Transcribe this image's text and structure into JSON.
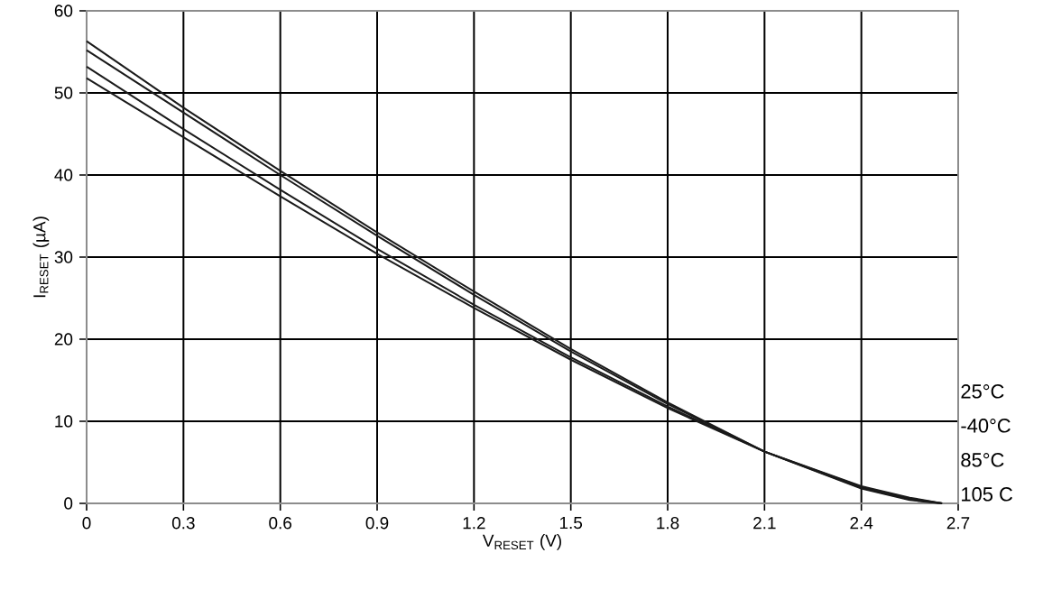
{
  "chart_data": {
    "type": "line",
    "xlabel": "V$_{RESET}$ (V)",
    "ylabel": "I$_{RESET}$ (µA)",
    "x": [
      0,
      0.3,
      0.6,
      0.9,
      1.2,
      1.5,
      1.8,
      2.1,
      2.4,
      2.55,
      2.65
    ],
    "series": [
      {
        "name": "25°C",
        "color": "#1a1a1a",
        "values": [
          56.3,
          48.2,
          40.5,
          33.0,
          25.8,
          18.8,
          12.3,
          6.3,
          1.8,
          0.4,
          0
        ]
      },
      {
        "name": "-40°C",
        "color": "#1a1a1a",
        "values": [
          55.2,
          47.6,
          40.0,
          32.6,
          25.4,
          18.5,
          12.1,
          6.3,
          1.9,
          0.5,
          0
        ]
      },
      {
        "name": "85°C",
        "color": "#1a1a1a",
        "values": [
          53.2,
          45.6,
          38.2,
          31.0,
          24.2,
          17.8,
          11.8,
          6.3,
          2.0,
          0.6,
          0
        ]
      },
      {
        "name": "105 C",
        "color": "#1a1a1a",
        "values": [
          51.8,
          44.6,
          37.4,
          30.4,
          23.8,
          17.5,
          11.6,
          6.3,
          2.1,
          0.7,
          0
        ]
      }
    ],
    "xlim": [
      0,
      2.7
    ],
    "ylim": [
      0,
      60
    ],
    "xticks": [
      0,
      0.3,
      0.6,
      0.9,
      1.2,
      1.5,
      1.8,
      2.1,
      2.4,
      2.7
    ],
    "yticks": [
      0,
      10,
      20,
      30,
      40,
      50,
      60
    ],
    "grid": true,
    "marker": "none",
    "line_style": "solid"
  }
}
